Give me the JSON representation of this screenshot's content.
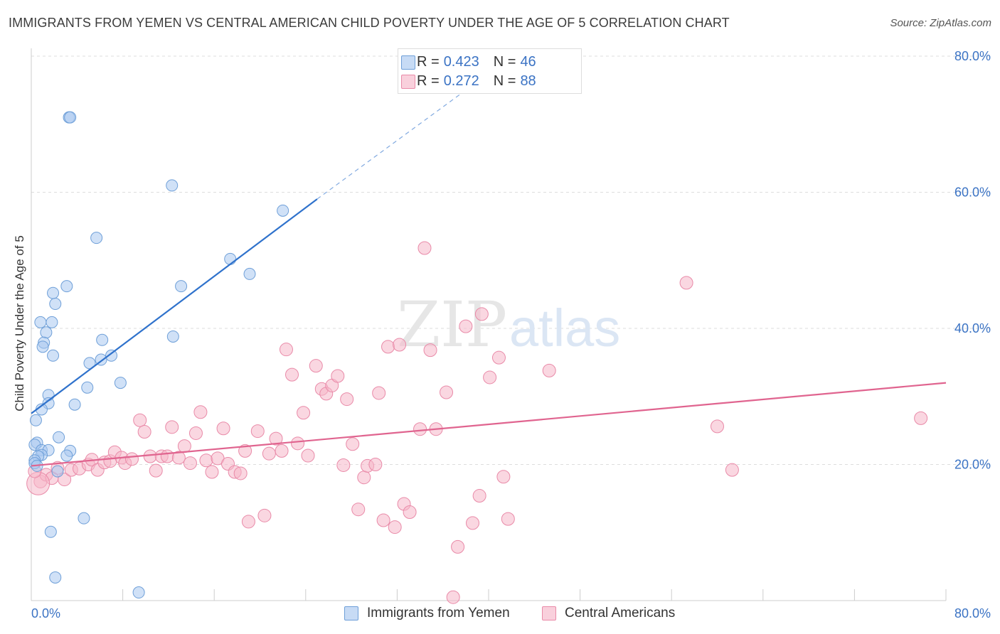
{
  "header": {
    "title": "IMMIGRANTS FROM YEMEN VS CENTRAL AMERICAN CHILD POVERTY UNDER THE AGE OF 5 CORRELATION CHART",
    "source": "Source: ZipAtlas.com"
  },
  "watermark": {
    "zip": "ZIP",
    "atlas": "atlas"
  },
  "legend_top": {
    "rows": [
      {
        "r_label": "R =",
        "r_value": "0.423",
        "n_label": "N =",
        "n_value": "46",
        "color": "#a9c8f0"
      },
      {
        "r_label": "R =",
        "r_value": "0.272",
        "n_label": "N =",
        "n_value": "88",
        "color": "#f5b6c9"
      }
    ]
  },
  "colors": {
    "blue_fill": "#a9c8f0",
    "blue_stroke": "#6e9fd8",
    "blue_line": "#2f72cc",
    "pink_fill": "#f5b6c9",
    "pink_stroke": "#e98aa8",
    "pink_line": "#e0648f",
    "tick_label": "#3b73c4",
    "grid": "#dddddd"
  },
  "chart_data": {
    "type": "scatter",
    "title": "IMMIGRANTS FROM YEMEN VS CENTRAL AMERICAN CHILD POVERTY UNDER THE AGE OF 5 CORRELATION CHART",
    "xlabel": "",
    "ylabel": "Child Poverty Under the Age of 5",
    "xlim": [
      0,
      80
    ],
    "ylim": [
      0,
      80
    ],
    "x_tick_labels": [
      "0.0%",
      "80.0%"
    ],
    "y_tick_labels": [
      "20.0%",
      "40.0%",
      "60.0%",
      "80.0%"
    ],
    "y_ticks": [
      20,
      40,
      60,
      80
    ],
    "grid": true,
    "legend_position": "bottom-center",
    "series": [
      {
        "name": "Immigrants from Yemen",
        "color": "#a9c8f0",
        "trend": {
          "x": [
            0.0,
            25.0
          ],
          "y": [
            27.5,
            59.0
          ],
          "dashed_to": [
            38.0,
            75.0
          ]
        },
        "points": [
          {
            "x": 3.3,
            "y": 71.0
          },
          {
            "x": 3.4,
            "y": 71.0
          },
          {
            "x": 12.3,
            "y": 61.0
          },
          {
            "x": 22.0,
            "y": 57.3
          },
          {
            "x": 5.7,
            "y": 53.3
          },
          {
            "x": 17.4,
            "y": 50.2
          },
          {
            "x": 19.1,
            "y": 48.0
          },
          {
            "x": 3.1,
            "y": 46.2
          },
          {
            "x": 13.1,
            "y": 46.2
          },
          {
            "x": 1.9,
            "y": 45.2
          },
          {
            "x": 2.1,
            "y": 43.6
          },
          {
            "x": 0.8,
            "y": 40.9
          },
          {
            "x": 1.8,
            "y": 40.9
          },
          {
            "x": 1.3,
            "y": 39.4
          },
          {
            "x": 6.2,
            "y": 38.3
          },
          {
            "x": 12.4,
            "y": 38.8
          },
          {
            "x": 1.1,
            "y": 37.9
          },
          {
            "x": 1.0,
            "y": 37.3
          },
          {
            "x": 1.9,
            "y": 36.0
          },
          {
            "x": 7.0,
            "y": 36.0
          },
          {
            "x": 6.1,
            "y": 35.4
          },
          {
            "x": 5.1,
            "y": 34.9
          },
          {
            "x": 7.8,
            "y": 32.0
          },
          {
            "x": 4.9,
            "y": 31.3
          },
          {
            "x": 1.5,
            "y": 30.2
          },
          {
            "x": 1.5,
            "y": 29.0
          },
          {
            "x": 3.8,
            "y": 28.8
          },
          {
            "x": 0.9,
            "y": 28.1
          },
          {
            "x": 0.4,
            "y": 26.5
          },
          {
            "x": 2.4,
            "y": 24.0
          },
          {
            "x": 0.5,
            "y": 23.2
          },
          {
            "x": 0.3,
            "y": 22.9
          },
          {
            "x": 0.9,
            "y": 22.1
          },
          {
            "x": 1.5,
            "y": 22.1
          },
          {
            "x": 3.4,
            "y": 22.0
          },
          {
            "x": 0.9,
            "y": 21.4
          },
          {
            "x": 3.1,
            "y": 21.3
          },
          {
            "x": 0.6,
            "y": 21.2
          },
          {
            "x": 0.3,
            "y": 20.6
          },
          {
            "x": 0.3,
            "y": 20.2
          },
          {
            "x": 0.5,
            "y": 19.8
          },
          {
            "x": 2.3,
            "y": 19.0
          },
          {
            "x": 4.6,
            "y": 12.1
          },
          {
            "x": 1.7,
            "y": 10.1
          },
          {
            "x": 2.1,
            "y": 3.4
          },
          {
            "x": 9.4,
            "y": 1.2
          }
        ]
      },
      {
        "name": "Central Americans",
        "color": "#f5b6c9",
        "trend": {
          "x": [
            0.0,
            80.0
          ],
          "y": [
            19.8,
            32.0
          ]
        },
        "points": [
          {
            "x": 0.8,
            "y": 17.5
          },
          {
            "x": 1.3,
            "y": 18.5
          },
          {
            "x": 1.8,
            "y": 18.0
          },
          {
            "x": 2.3,
            "y": 19.5
          },
          {
            "x": 2.9,
            "y": 17.8
          },
          {
            "x": 3.5,
            "y": 19.2
          },
          {
            "x": 4.2,
            "y": 19.4
          },
          {
            "x": 5.0,
            "y": 20.0
          },
          {
            "x": 5.3,
            "y": 20.7
          },
          {
            "x": 5.8,
            "y": 19.2
          },
          {
            "x": 6.4,
            "y": 20.3
          },
          {
            "x": 6.9,
            "y": 20.5
          },
          {
            "x": 7.3,
            "y": 21.8
          },
          {
            "x": 7.9,
            "y": 21.0
          },
          {
            "x": 8.2,
            "y": 20.2
          },
          {
            "x": 8.8,
            "y": 20.8
          },
          {
            "x": 9.5,
            "y": 26.5
          },
          {
            "x": 9.9,
            "y": 24.8
          },
          {
            "x": 10.4,
            "y": 21.2
          },
          {
            "x": 10.9,
            "y": 19.1
          },
          {
            "x": 11.4,
            "y": 21.2
          },
          {
            "x": 11.9,
            "y": 21.2
          },
          {
            "x": 12.3,
            "y": 25.5
          },
          {
            "x": 12.9,
            "y": 21.0
          },
          {
            "x": 13.4,
            "y": 22.7
          },
          {
            "x": 13.9,
            "y": 20.2
          },
          {
            "x": 14.4,
            "y": 24.6
          },
          {
            "x": 14.8,
            "y": 27.7
          },
          {
            "x": 15.3,
            "y": 20.6
          },
          {
            "x": 15.8,
            "y": 18.9
          },
          {
            "x": 16.3,
            "y": 20.9
          },
          {
            "x": 16.8,
            "y": 25.3
          },
          {
            "x": 17.2,
            "y": 20.1
          },
          {
            "x": 17.8,
            "y": 18.9
          },
          {
            "x": 18.3,
            "y": 18.7
          },
          {
            "x": 18.7,
            "y": 22.0
          },
          {
            "x": 19.0,
            "y": 11.6
          },
          {
            "x": 19.8,
            "y": 24.9
          },
          {
            "x": 20.4,
            "y": 12.5
          },
          {
            "x": 20.8,
            "y": 21.6
          },
          {
            "x": 21.4,
            "y": 23.8
          },
          {
            "x": 21.9,
            "y": 22.0
          },
          {
            "x": 22.3,
            "y": 36.9
          },
          {
            "x": 22.8,
            "y": 33.2
          },
          {
            "x": 23.3,
            "y": 23.1
          },
          {
            "x": 23.8,
            "y": 27.6
          },
          {
            "x": 24.2,
            "y": 21.3
          },
          {
            "x": 24.9,
            "y": 34.5
          },
          {
            "x": 25.4,
            "y": 31.1
          },
          {
            "x": 25.8,
            "y": 30.4
          },
          {
            "x": 26.3,
            "y": 31.6
          },
          {
            "x": 26.8,
            "y": 33.0
          },
          {
            "x": 27.3,
            "y": 19.9
          },
          {
            "x": 27.6,
            "y": 29.6
          },
          {
            "x": 28.1,
            "y": 23.0
          },
          {
            "x": 28.6,
            "y": 13.4
          },
          {
            "x": 29.1,
            "y": 18.1
          },
          {
            "x": 29.4,
            "y": 19.8
          },
          {
            "x": 30.1,
            "y": 20.0
          },
          {
            "x": 30.4,
            "y": 30.5
          },
          {
            "x": 30.8,
            "y": 11.8
          },
          {
            "x": 31.2,
            "y": 37.3
          },
          {
            "x": 31.8,
            "y": 10.8
          },
          {
            "x": 32.2,
            "y": 37.6
          },
          {
            "x": 32.6,
            "y": 14.2
          },
          {
            "x": 33.1,
            "y": 13.0
          },
          {
            "x": 34.0,
            "y": 25.2
          },
          {
            "x": 34.4,
            "y": 51.8
          },
          {
            "x": 34.9,
            "y": 36.8
          },
          {
            "x": 35.4,
            "y": 25.2
          },
          {
            "x": 36.3,
            "y": 30.6
          },
          {
            "x": 37.3,
            "y": 7.9
          },
          {
            "x": 38.0,
            "y": 40.3
          },
          {
            "x": 38.6,
            "y": 11.4
          },
          {
            "x": 39.2,
            "y": 15.4
          },
          {
            "x": 39.4,
            "y": 42.1
          },
          {
            "x": 40.1,
            "y": 32.8
          },
          {
            "x": 40.9,
            "y": 35.7
          },
          {
            "x": 41.3,
            "y": 18.2
          },
          {
            "x": 41.7,
            "y": 12.0
          },
          {
            "x": 36.9,
            "y": 0.5
          },
          {
            "x": 45.3,
            "y": 33.8
          },
          {
            "x": 57.3,
            "y": 46.7
          },
          {
            "x": 60.0,
            "y": 25.6
          },
          {
            "x": 61.3,
            "y": 19.2
          },
          {
            "x": 77.8,
            "y": 26.8
          },
          {
            "x": 0.6,
            "y": 17.2
          },
          {
            "x": 0.3,
            "y": 19.0
          }
        ]
      }
    ]
  },
  "legend_bottom": {
    "items": [
      {
        "label": "Immigrants from Yemen",
        "color": "#a9c8f0"
      },
      {
        "label": "Central Americans",
        "color": "#f5b6c9"
      }
    ]
  }
}
